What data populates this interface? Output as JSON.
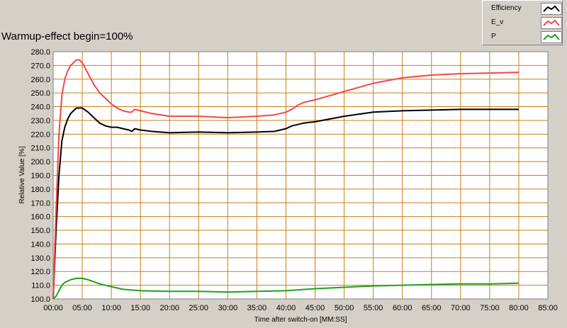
{
  "chart_data": {
    "type": "line",
    "title": "Warmup-effect begin=100%",
    "xlabel": "Time after switch-on [MM:SS]",
    "ylabel": "Relative Value [%]",
    "xlim": [
      0,
      85
    ],
    "ylim": [
      100,
      280
    ],
    "x_ticks": [
      "00:00",
      "05:00",
      "10:00",
      "15:00",
      "20:00",
      "25:00",
      "30:00",
      "35:00",
      "40:00",
      "45:00",
      "50:00",
      "55:00",
      "60:00",
      "65:00",
      "70:00",
      "75:00",
      "80:00",
      "85:00"
    ],
    "y_ticks": [
      "100.0",
      "110.0",
      "120.0",
      "130.0",
      "140.0",
      "150.0",
      "160.0",
      "170.0",
      "180.0",
      "190.0",
      "200.0",
      "210.0",
      "220.0",
      "230.0",
      "240.0",
      "250.0",
      "260.0",
      "270.0",
      "280.0"
    ],
    "grid": true,
    "legend_position": "top-right",
    "x_unit": "minutes",
    "series": [
      {
        "name": "Efficiency",
        "color": "#000000",
        "x": [
          0,
          0.5,
          1,
          1.5,
          2,
          2.5,
          3,
          3.5,
          4,
          5,
          6,
          7,
          8,
          9,
          10,
          11,
          12,
          13,
          13.5,
          14,
          15,
          17,
          20,
          25,
          30,
          35,
          38,
          40,
          41,
          42,
          43,
          45,
          50,
          55,
          60,
          65,
          70,
          75,
          80
        ],
        "y": [
          100,
          150,
          190,
          215,
          225,
          231,
          235,
          237,
          239,
          239,
          236,
          232,
          228,
          226,
          225,
          225,
          224,
          223,
          222,
          224,
          223,
          222,
          221,
          221.5,
          221,
          221.5,
          222,
          224,
          226,
          227,
          228,
          229,
          233,
          236,
          237,
          237.5,
          238,
          238,
          238
        ]
      },
      {
        "name": "E_v",
        "color": "#f04848",
        "x": [
          0,
          0.5,
          1,
          1.5,
          2,
          2.5,
          3,
          3.5,
          4,
          4.5,
          5,
          5.5,
          6,
          7,
          8,
          9,
          10,
          11,
          12,
          13,
          13.5,
          14,
          15,
          17,
          20,
          25,
          30,
          35,
          38,
          40,
          41,
          42,
          43,
          45,
          50,
          55,
          60,
          65,
          70,
          75,
          80
        ],
        "y": [
          100,
          165,
          220,
          248,
          260,
          266,
          270,
          272,
          274,
          274,
          272,
          268,
          264,
          256,
          250,
          246,
          242,
          239,
          237,
          236,
          236,
          238,
          237,
          235,
          233,
          233,
          232,
          233,
          234,
          236,
          238,
          241,
          243,
          245,
          251,
          257,
          261,
          263,
          264,
          264.5,
          265
        ]
      },
      {
        "name": "P",
        "color": "#20a020",
        "x": [
          0,
          0.5,
          1,
          1.5,
          2,
          3,
          4,
          5,
          6,
          7,
          8,
          10,
          12,
          15,
          20,
          25,
          30,
          35,
          40,
          45,
          50,
          55,
          60,
          65,
          70,
          75,
          80
        ],
        "y": [
          100,
          102,
          106,
          110,
          112,
          114,
          115,
          115,
          114,
          112.5,
          111,
          109,
          107,
          106,
          105.5,
          105.5,
          105,
          105.5,
          106,
          107.5,
          108.5,
          109.5,
          110,
          110.5,
          111,
          111,
          111.5
        ]
      }
    ]
  }
}
